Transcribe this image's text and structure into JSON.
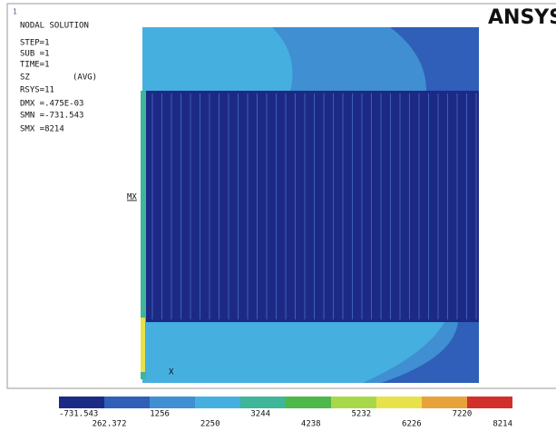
{
  "window_number": "1",
  "info": [
    "NODAL SOLUTION",
    "STEP=1",
    "SUB =1",
    "TIME=1",
    "SZ",
    "(AVG)",
    "RSYS=11",
    "DMX =.475E-03",
    "SMN =-731.543",
    "SMX =8214"
  ],
  "logo": "ANSYS",
  "axis_labels": {
    "mx": "MX",
    "x": "X"
  },
  "legend": {
    "labels": [
      "-731.543",
      "262.372",
      "1256",
      "2250",
      "3244",
      "4238",
      "5232",
      "6226",
      "7220",
      "8214"
    ],
    "colors": [
      "#1c2a86",
      "#2f5fb8",
      "#3f8fd2",
      "#45b0e0",
      "#3fb59a",
      "#4fb84a",
      "#a8d84a",
      "#e8e24a",
      "#e8a23c",
      "#d2302a"
    ]
  }
}
